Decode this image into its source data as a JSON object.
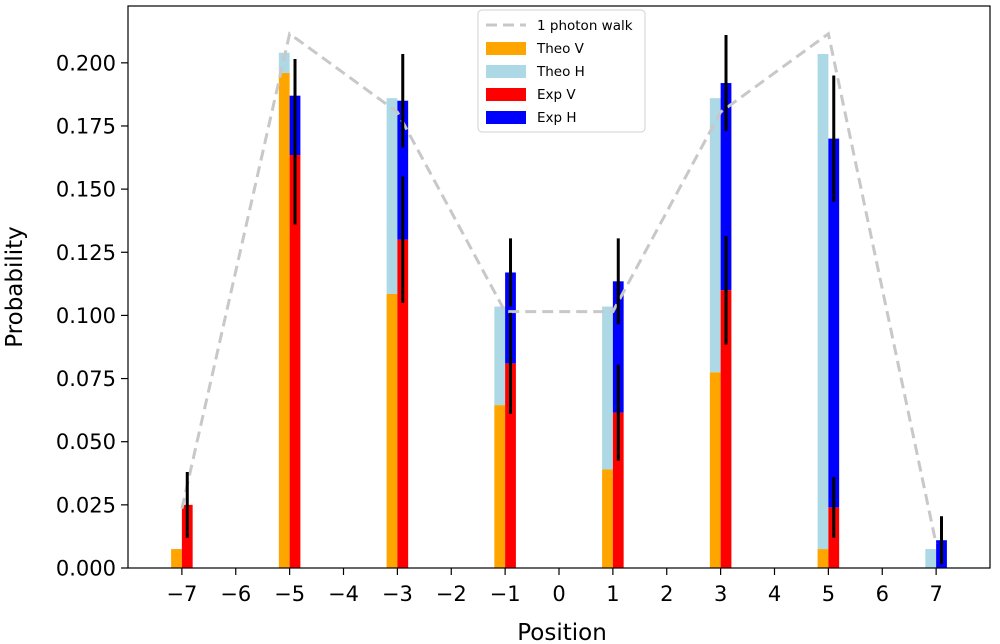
{
  "chart_data": {
    "type": "bar",
    "title": "",
    "xlabel": "Position",
    "ylabel": "Probability",
    "xlim": [
      -8,
      8
    ],
    "ylim": [
      0,
      0.2225
    ],
    "x_ticks": [
      -7,
      -6,
      -5,
      -4,
      -3,
      -2,
      -1,
      0,
      1,
      2,
      3,
      4,
      5,
      6,
      7
    ],
    "x_tick_labels": [
      "−7",
      "−6",
      "−5",
      "−4",
      "−3",
      "−2",
      "−1",
      "0",
      "1",
      "2",
      "3",
      "4",
      "5",
      "6",
      "7"
    ],
    "y_ticks": [
      0,
      0.025,
      0.05,
      0.075,
      0.1,
      0.125,
      0.15,
      0.175,
      0.2
    ],
    "y_tick_labels": [
      "0.000",
      "0.025",
      "0.050",
      "0.075",
      "0.100",
      "0.125",
      "0.150",
      "0.175",
      "0.200"
    ],
    "legend_position": "top-center",
    "positions": [
      -7,
      -5,
      -3,
      -1,
      1,
      3,
      5,
      7
    ],
    "series": [
      {
        "name": "1 photon walk",
        "kind": "line",
        "style": "dashed",
        "color": "#c8c8c8",
        "values": [
          0.0235,
          0.2115,
          0.1805,
          0.1015,
          0.1015,
          0.1805,
          0.2115,
          0.0095
        ]
      },
      {
        "name": "Theo V",
        "kind": "bar",
        "color": "#ffa500",
        "values": [
          0.0075,
          0.196,
          0.1085,
          0.0645,
          0.039,
          0.0775,
          0.0075,
          0.0
        ]
      },
      {
        "name": "Theo H",
        "kind": "bar",
        "color": "#add8e6",
        "values": [
          0.0,
          0.008,
          0.0775,
          0.039,
          0.0645,
          0.1085,
          0.196,
          0.0075
        ]
      },
      {
        "name": "Exp V",
        "kind": "bar",
        "color": "#ff0000",
        "values": [
          0.025,
          0.1635,
          0.13,
          0.081,
          0.0615,
          0.11,
          0.024,
          0.0
        ],
        "errors": [
          0.013,
          0.0275,
          0.025,
          0.02,
          0.019,
          0.0215,
          0.012,
          0.0
        ]
      },
      {
        "name": "Exp H",
        "kind": "bar",
        "color": "#0000ff",
        "values": [
          0.0,
          0.0235,
          0.055,
          0.036,
          0.052,
          0.082,
          0.146,
          0.011
        ],
        "errors": [
          0.0,
          0.0145,
          0.0185,
          0.0135,
          0.017,
          0.019,
          0.025,
          0.0095
        ]
      }
    ]
  }
}
